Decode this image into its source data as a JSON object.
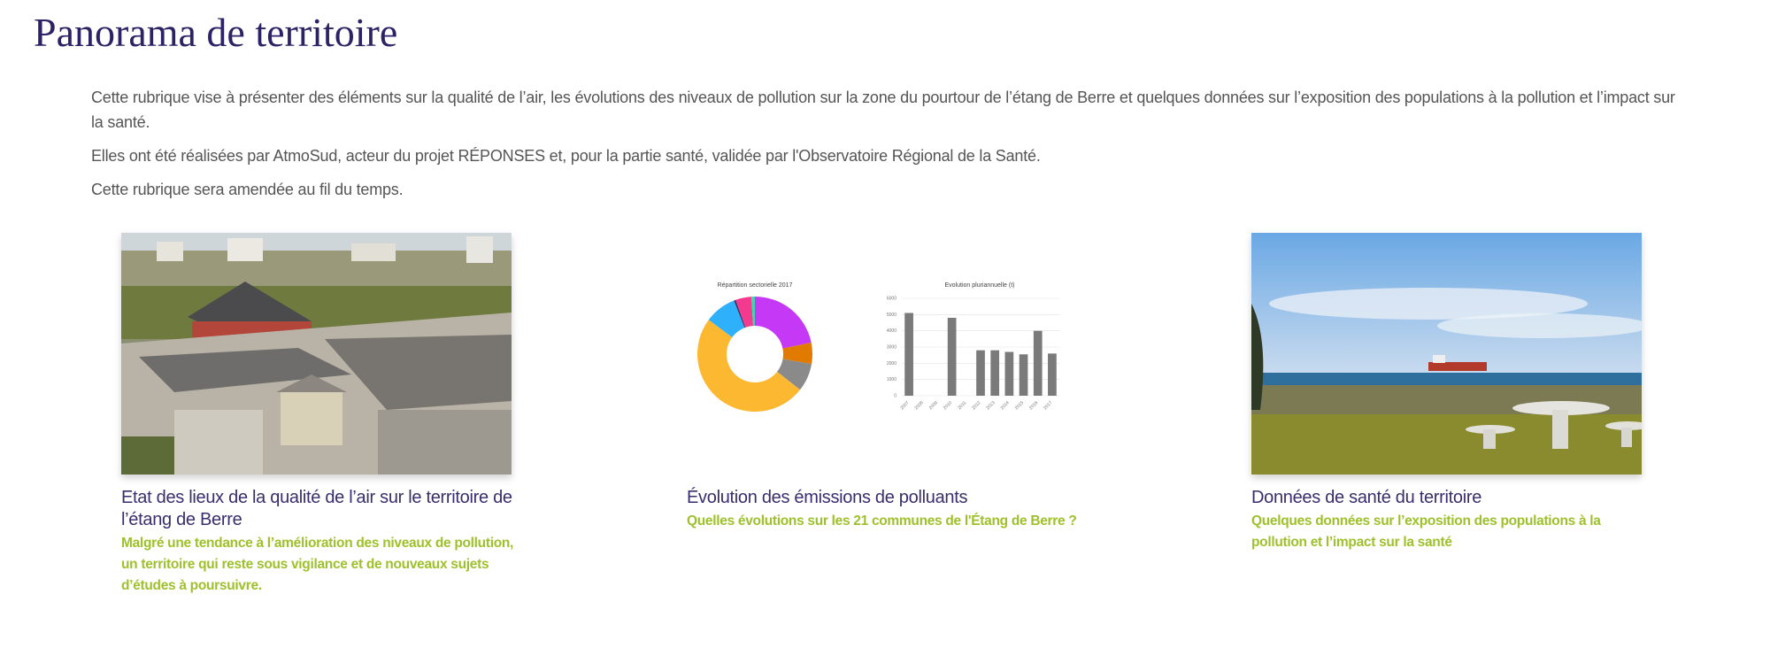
{
  "page": {
    "title": "Panorama de territoire"
  },
  "intro": {
    "paragraphs": [
      "Cette rubrique vise à présenter des éléments sur la qualité de l’air, les évolutions des niveaux de pollution sur la zone du pourtour de l’étang de Berre et quelques données sur l’exposition des populations à la pollution et l’impact sur la santé.",
      "Elles ont été réalisées par AtmoSud, acteur du projet RÉPONSES et, pour la partie santé, validée par l'Observatoire Régional de la Santé.",
      "Cette rubrique sera amendée au fil du temps."
    ]
  },
  "cards": [
    {
      "title": "Etat des lieux de la qualité de l’air sur le territoire de l’étang de Berre",
      "subtitle": "Malgré une tendance à l’amélioration des niveaux de pollution, un territoire qui reste sous vigilance et de nouveaux sujets d’études à poursuivre.",
      "image": "aerial-building-photo"
    },
    {
      "title": "Évolution des émissions de polluants",
      "subtitle": "Quelles évolutions sur les 21 communes de l'Étang de Berre ?",
      "image": "emissions-charts-thumbnail"
    },
    {
      "title": "Données de santé du territoire",
      "subtitle": "Quelques données sur l’exposition des populations à la pollution et l’impact sur la santé",
      "image": "seaside-tanker-photo"
    }
  ],
  "chart_data": [
    {
      "type": "pie",
      "title": "Répartition sectorielle 2017",
      "values": [
        22,
        6,
        8,
        50,
        9,
        0.5,
        4.5,
        1
      ],
      "colors": [
        "#c538f5",
        "#e07b00",
        "#8a8a8a",
        "#fbb830",
        "#2fb0fa",
        "#333366",
        "#f23b8f",
        "#3ad6b0"
      ]
    },
    {
      "type": "bar",
      "title": "Evolution pluriannuelle (t)",
      "categories": [
        "2007",
        "2008",
        "2009",
        "2010",
        "2011",
        "2012",
        "2013",
        "2014",
        "2015",
        "2016",
        "2017"
      ],
      "values": [
        5100,
        0,
        0,
        4800,
        0,
        2800,
        2800,
        2700,
        2550,
        4000,
        2600
      ],
      "yticks": [
        "0",
        "1000",
        "2000",
        "3000",
        "4000",
        "5000",
        "6000"
      ],
      "ylim": [
        0,
        6000
      ],
      "color": "#7a7a7a"
    }
  ],
  "colors": {
    "title": "#2d2266",
    "card_title": "#3a2d6e",
    "accent_green": "#9ec12b",
    "text": "#555555"
  }
}
